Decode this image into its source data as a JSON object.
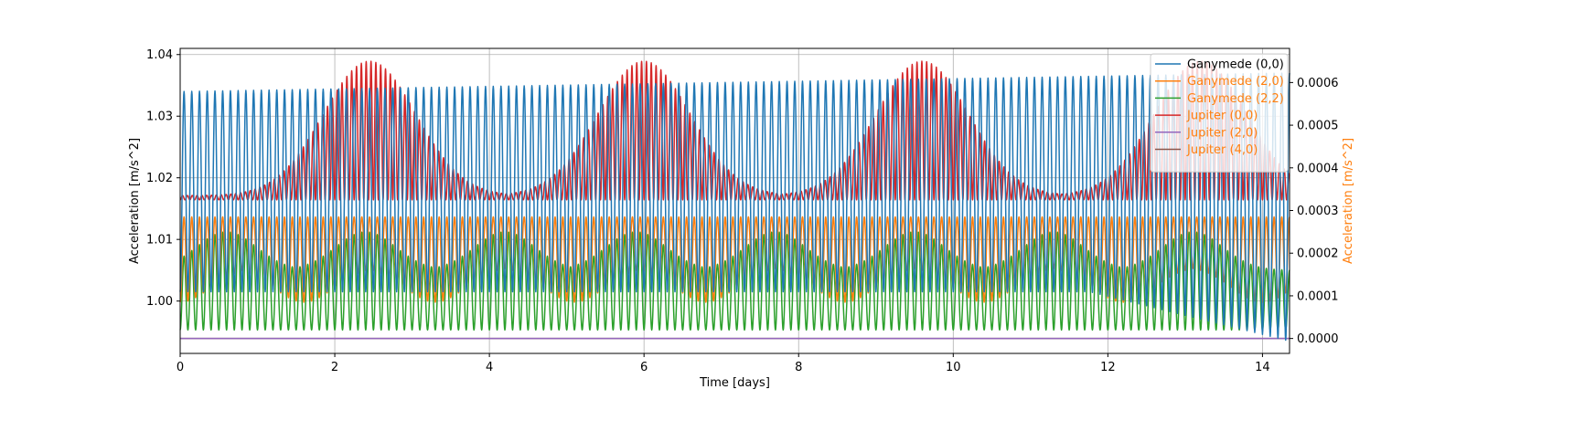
{
  "chart_data": {
    "type": "line",
    "title": "",
    "xlabel": "Time [days]",
    "ylabel_left": "Acceleration [m/s^2]",
    "ylabel_right": "Acceleration [m/s^2]",
    "xlim": [
      0,
      14.35
    ],
    "ylim_left": [
      0.9915,
      1.041
    ],
    "ylim_right": [
      -3.5e-05,
      0.00068
    ],
    "x_ticks": [
      0,
      2,
      4,
      6,
      8,
      10,
      12,
      14
    ],
    "x_tick_labels": [
      "0",
      "2",
      "4",
      "6",
      "8",
      "10",
      "12",
      "14"
    ],
    "y_left_ticks": [
      1.0,
      1.01,
      1.02,
      1.03,
      1.04
    ],
    "y_left_tick_labels": [
      "1.00",
      "1.01",
      "1.02",
      "1.03",
      "1.04"
    ],
    "y_right_ticks": [
      0.0,
      0.0001,
      0.0002,
      0.0003,
      0.0004,
      0.0005,
      0.0006
    ],
    "y_right_tick_labels": [
      "0.0000",
      "0.0001",
      "0.0002",
      "0.0003",
      "0.0004",
      "0.0005",
      "0.0006"
    ],
    "grid": true,
    "legend_position": "upper right",
    "series": [
      {
        "name": "Ganymede (0,0)",
        "axis": "left",
        "color": "#1f77b4",
        "form": "oscillation",
        "period_days": 0.1,
        "min_value_start": 1.0015,
        "min_value_end": 0.9935,
        "max_value_start": 1.034,
        "max_value_end": 1.037
      },
      {
        "name": "Ganymede (2,0)",
        "axis": "right",
        "color": "#ff7f0e",
        "form": "modulated_oscillation",
        "period_days": 0.1,
        "upper_value": 0.000285,
        "lower_value_min": 8.5e-05,
        "lower_value_max": 0.00017,
        "lower_value_dip_days": [
          0.0,
          1.6,
          3.3,
          5.1,
          6.8,
          8.6,
          10.4,
          12.2,
          14.0
        ]
      },
      {
        "name": "Ganymede (2,2)",
        "axis": "right",
        "color": "#2ca02c",
        "form": "modulated_oscillation",
        "period_days": 0.1,
        "lower_value": 2e-05,
        "upper_value_min": 0.00016,
        "upper_value_max": 0.00025,
        "upper_value_peak_days": [
          0.6,
          2.4,
          4.2,
          5.9,
          7.7,
          9.5,
          11.3,
          13.1
        ]
      },
      {
        "name": "Jupiter (0,0)",
        "axis": "right",
        "color": "#d62728",
        "form": "modulated_oscillation",
        "period_days": 0.0625,
        "lower_value": 0.000325,
        "upper_value_min": 0.000335,
        "upper_value_max": 0.00065,
        "upper_value_peak_days": [
          2.45,
          6.0,
          9.6,
          13.2
        ]
      },
      {
        "name": "Jupiter (2,0)",
        "axis": "right",
        "color": "#9467bd",
        "form": "constant",
        "value": 0.0
      },
      {
        "name": "Jupiter (4,0)",
        "axis": "right",
        "color": "#8c564b",
        "form": "constant",
        "value": 0.0
      }
    ]
  }
}
